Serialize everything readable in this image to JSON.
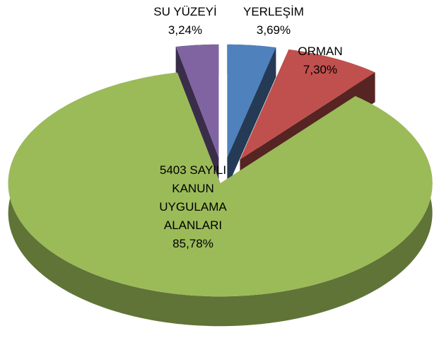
{
  "chart_data": {
    "type": "pie",
    "categories": [
      "YERLEŞİM",
      "ORMAN",
      "5403 SAYILI KANUN UYGULAMA ALANLARI",
      "SU YÜZEYİ"
    ],
    "values": [
      3.69,
      7.3,
      85.78,
      3.24
    ],
    "value_labels": [
      "3,69%",
      "7,30%",
      "85,78%",
      "3,24%"
    ],
    "colors": [
      "#4f81bd",
      "#c0504d",
      "#9bbb59",
      "#8064a2"
    ]
  }
}
